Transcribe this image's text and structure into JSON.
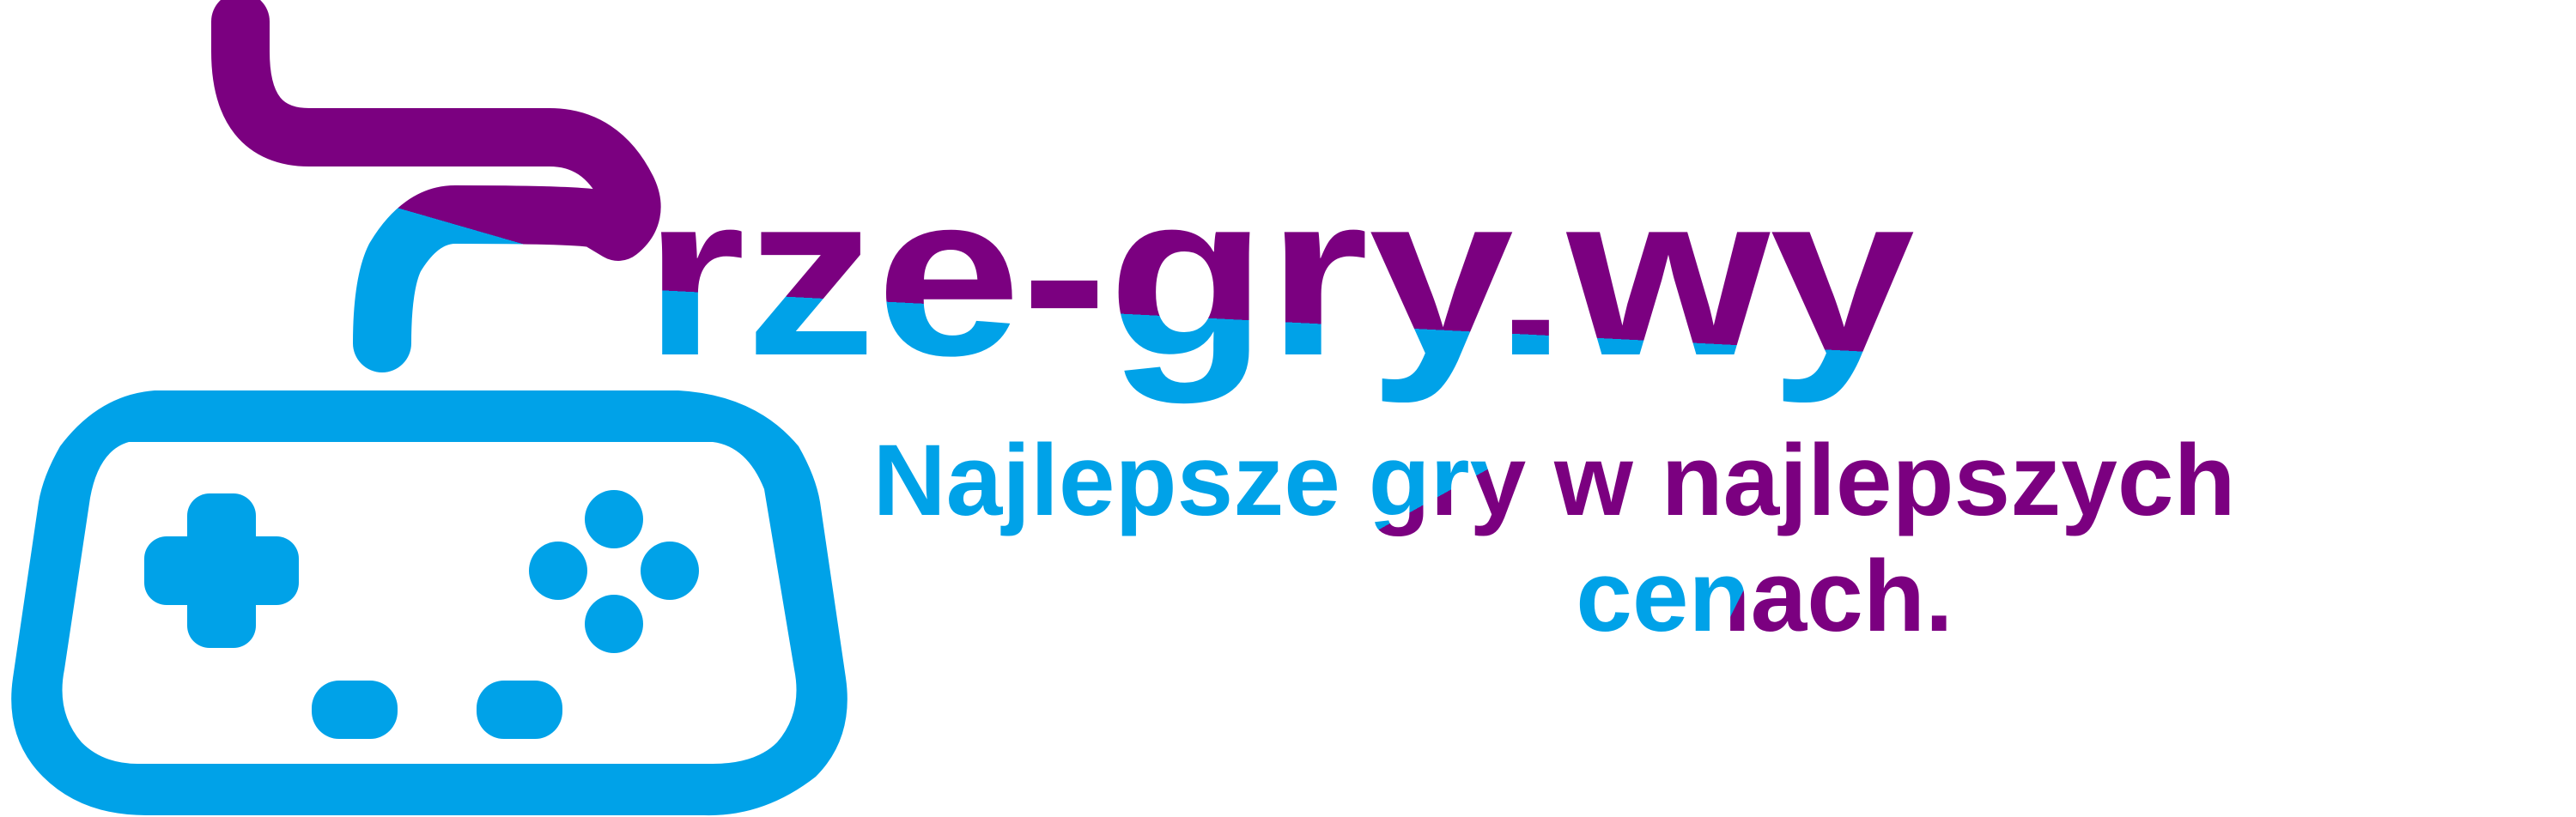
{
  "brand": {
    "name": "Prze-gry.wy",
    "name_rest": "rze-gry.wy",
    "tagline_line1": "Najlepsze gry w najlepszych",
    "tagline_line2": "cenach."
  },
  "icons": {
    "logo_p": "p-pipe-letter-icon",
    "controller": "gamepad-icon"
  },
  "colors": {
    "purple": "#7b0080",
    "blue": "#00a2e8",
    "background": "#ffffff"
  }
}
